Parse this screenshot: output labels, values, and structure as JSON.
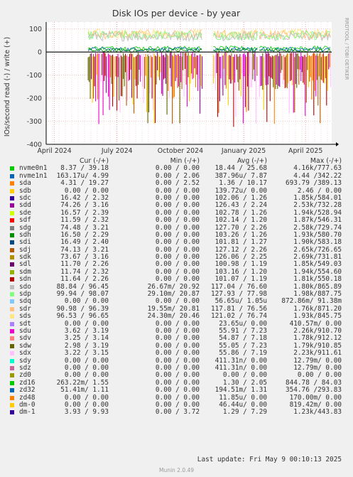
{
  "chart_data": {
    "type": "line",
    "title": "Disk IOs per device - by year",
    "ylabel": "IOs/second read (-) / write (+)",
    "side_label": "RRDTOOL / TOBI OETIKER",
    "ylim": [
      -400,
      130
    ],
    "yticks": [
      100,
      0,
      -100,
      -200,
      -300,
      -400
    ],
    "xticks": [
      {
        "label": "April 2024",
        "date": "2024-04-01"
      },
      {
        "label": "July 2024",
        "date": "2024-07-01"
      },
      {
        "label": "October 2024",
        "date": "2024-10-01"
      },
      {
        "label": "January 2025",
        "date": "2025-01-01"
      },
      {
        "label": "April 2025",
        "date": "2025-04-01"
      }
    ],
    "xrange": [
      "2024-03-20",
      "2025-05-09"
    ],
    "data_segments": [
      {
        "start": "2024-05-20",
        "end": "2024-11-03"
      },
      {
        "start": "2024-11-18",
        "end": "2025-01-22"
      },
      {
        "start": "2025-01-24",
        "end": "2025-05-09"
      }
    ],
    "write_band": [
      60,
      85,
      100
    ],
    "read_band": [
      -75,
      -130,
      -215,
      -330
    ],
    "colors": [
      "#00cc00",
      "#0066b3",
      "#ff8000",
      "#ffcc00",
      "#330099",
      "#990099",
      "#ccff00",
      "#ff0000",
      "#808080",
      "#008f00",
      "#00487d",
      "#b35a00",
      "#b38f00",
      "#6b006b",
      "#8fb300",
      "#b30000",
      "#bebebe",
      "#80ff80",
      "#80c9ff",
      "#ffc080",
      "#ffe680",
      "#aa80ff",
      "#ee00cc",
      "#ff8080",
      "#666600",
      "#ffbfff",
      "#00ffcc",
      "#cc6699",
      "#999900"
    ],
    "legend_header": {
      "cur": "Cur (-/+)",
      "min": "Min (-/+)",
      "avg": "Avg (-/+)",
      "max": "Max (-/+)"
    },
    "series": [
      {
        "name": "nvme0n1",
        "color": "#00cc00",
        "cur": "8.37 / 39.18",
        "min": "0.00 /  0.00",
        "avg": "18.44 / 25.68",
        "max": "4.16k/777.63"
      },
      {
        "name": "nvme1n1",
        "color": "#0066b3",
        "cur": "163.17u/  4.99",
        "min": "0.00 /  2.06",
        "avg": "387.96u/  7.87",
        "max": "4.44 /342.22"
      },
      {
        "name": "sda",
        "color": "#ff8000",
        "cur": "4.31 / 19.27",
        "min": "0.00 /  2.52",
        "avg": "1.36 / 10.17",
        "max": "693.79 /389.13"
      },
      {
        "name": "sdb",
        "color": "#ffcc00",
        "cur": "0.00 /  0.00",
        "min": "0.00 /  0.00",
        "avg": "139.72u/  0.00",
        "max": "2.46 /  0.00"
      },
      {
        "name": "sdc",
        "color": "#330099",
        "cur": "16.42 /  2.32",
        "min": "0.00 /  0.00",
        "avg": "102.06 /  1.26",
        "max": "1.85k/584.01"
      },
      {
        "name": "sdd",
        "color": "#990099",
        "cur": "74.26 /  3.16",
        "min": "0.00 /  0.00",
        "avg": "126.43 /  2.24",
        "max": "2.53k/732.28"
      },
      {
        "name": "sde",
        "color": "#ccff00",
        "cur": "16.57 /  2.39",
        "min": "0.00 /  0.00",
        "avg": "102.78 /  1.26",
        "max": "1.94k/528.94"
      },
      {
        "name": "sdf",
        "color": "#ff0000",
        "cur": "11.59 /  2.32",
        "min": "0.00 /  0.00",
        "avg": "102.14 /  1.20",
        "max": "1.87k/546.31"
      },
      {
        "name": "sdg",
        "color": "#808080",
        "cur": "74.48 /  3.21",
        "min": "0.00 /  0.00",
        "avg": "127.70 /  2.26",
        "max": "2.58k/729.74"
      },
      {
        "name": "sdh",
        "color": "#008f00",
        "cur": "16.50 /  2.29",
        "min": "0.00 /  0.00",
        "avg": "103.26 /  1.26",
        "max": "1.93k/580.70"
      },
      {
        "name": "sdi",
        "color": "#00487d",
        "cur": "16.49 /  2.40",
        "min": "0.00 /  0.00",
        "avg": "101.81 /  1.27",
        "max": "1.90k/583.18"
      },
      {
        "name": "sdj",
        "color": "#b35a00",
        "cur": "74.13 /  3.21",
        "min": "0.00 /  0.00",
        "avg": "127.12 /  2.26",
        "max": "2.65k/726.65"
      },
      {
        "name": "sdk",
        "color": "#b38f00",
        "cur": "73.67 /  3.16",
        "min": "0.00 /  0.00",
        "avg": "126.06 /  2.25",
        "max": "2.69k/731.81"
      },
      {
        "name": "sdl",
        "color": "#6b006b",
        "cur": "11.70 /  2.26",
        "min": "0.00 /  0.00",
        "avg": "100.98 /  1.19",
        "max": "1.85k/549.03"
      },
      {
        "name": "sdm",
        "color": "#8fb300",
        "cur": "11.74 /  2.32",
        "min": "0.00 /  0.00",
        "avg": "103.16 /  1.20",
        "max": "1.94k/554.60"
      },
      {
        "name": "sdn",
        "color": "#b30000",
        "cur": "11.64 /  2.26",
        "min": "0.00 /  0.00",
        "avg": "101.07 /  1.19",
        "max": "1.81k/550.18"
      },
      {
        "name": "sdo",
        "color": "#bebebe",
        "cur": "88.84 / 96.45",
        "min": "26.67m/ 20.92",
        "avg": "117.04 / 76.60",
        "max": "1.80k/865.89"
      },
      {
        "name": "sdp",
        "color": "#80ff80",
        "cur": "99.94 / 98.07",
        "min": "29.10m/ 20.87",
        "avg": "127.93 / 77.98",
        "max": "1.98k/887.75"
      },
      {
        "name": "sdq",
        "color": "#80c9ff",
        "cur": "0.00 /  0.00",
        "min": "0.00 /  0.00",
        "avg": "56.65u/  1.05u",
        "max": "872.86m/ 91.38m"
      },
      {
        "name": "sdr",
        "color": "#ffc080",
        "cur": "90.98 / 96.39",
        "min": "19.55m/ 20.81",
        "avg": "117.81 / 76.56",
        "max": "1.76k/871.20"
      },
      {
        "name": "sds",
        "color": "#ffe680",
        "cur": "96.53 / 96.65",
        "min": "24.30m/ 20.46",
        "avg": "121.02 / 76.74",
        "max": "1.93k/845.75"
      },
      {
        "name": "sdt",
        "color": "#aa80ff",
        "cur": "0.00 /  0.00",
        "min": "0.00 /  0.00",
        "avg": "23.65u/  0.00",
        "max": "410.57m/  0.00"
      },
      {
        "name": "sdu",
        "color": "#ee00cc",
        "cur": "3.62 /  3.19",
        "min": "0.00 /  0.00",
        "avg": "55.91 /  7.23",
        "max": "2.26k/910.70"
      },
      {
        "name": "sdv",
        "color": "#ff8080",
        "cur": "3.25 /  3.14",
        "min": "0.00 /  0.00",
        "avg": "54.87 /  7.18",
        "max": "1.78k/912.12"
      },
      {
        "name": "sdw",
        "color": "#666600",
        "cur": "2.98 /  3.19",
        "min": "0.00 /  0.00",
        "avg": "55.05 /  7.23",
        "max": "1.79k/910.85"
      },
      {
        "name": "sdx",
        "color": "#ffbfff",
        "cur": "3.22 /  3.15",
        "min": "0.00 /  0.00",
        "avg": "55.86 /  7.19",
        "max": "2.23k/911.61"
      },
      {
        "name": "sdy",
        "color": "#00ffcc",
        "cur": "0.00 /  0.00",
        "min": "0.00 /  0.00",
        "avg": "411.31n/  0.00",
        "max": "12.79m/  0.00"
      },
      {
        "name": "sdz",
        "color": "#cc6699",
        "cur": "0.00 /  0.00",
        "min": "0.00 /  0.00",
        "avg": "411.31n/  0.00",
        "max": "12.79m/  0.00"
      },
      {
        "name": "zd0",
        "color": "#999900",
        "cur": "0.00 /  0.00",
        "min": "0.00 /  0.00",
        "avg": "0.00 /  0.00",
        "max": "0.00 /  0.00"
      },
      {
        "name": "zd16",
        "color": "#00cc00",
        "cur": "263.22m/  1.55",
        "min": "0.00 /  0.00",
        "avg": "1.30 /  2.05",
        "max": "844.78 / 84.03"
      },
      {
        "name": "zd32",
        "color": "#0066b3",
        "cur": "51.41m/  1.11",
        "min": "0.00 /  0.00",
        "avg": "194.51m/  1.31",
        "max": "354.76 /293.83"
      },
      {
        "name": "zd48",
        "color": "#ff8000",
        "cur": "0.00 /  0.00",
        "min": "0.00 /  0.00",
        "avg": "11.85u/  0.00",
        "max": "170.00m/  0.00"
      },
      {
        "name": "dm-0",
        "color": "#ffcc00",
        "cur": "0.00 /  0.00",
        "min": "0.00 /  0.00",
        "avg": "46.44u/  0.00",
        "max": "819.42m/  0.00"
      },
      {
        "name": "dm-1",
        "color": "#330099",
        "cur": "3.93 /  9.93",
        "min": "0.00 /  3.72",
        "avg": "1.29 /  7.29",
        "max": "1.23k/443.83"
      }
    ]
  },
  "footer": {
    "last_update": "Last update: Fri May  9 00:10:13 2025",
    "generator": "Munin 2.0.49"
  }
}
